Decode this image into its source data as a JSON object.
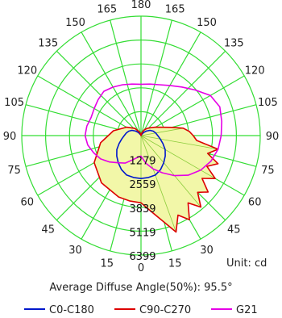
{
  "chart_data": {
    "type": "polar",
    "unit": "Unit: cd",
    "footer": "Average Diffuse Angle(50%): 95.5°",
    "angle_labels": [
      "180",
      "165",
      "150",
      "135",
      "120",
      "105",
      "90",
      "75",
      "60",
      "45",
      "30",
      "15",
      "0",
      "15",
      "30",
      "45",
      "60",
      "75",
      "90",
      "105",
      "120",
      "135",
      "150",
      "165"
    ],
    "ring_labels": [
      "1279",
      "2559",
      "3839",
      "5119",
      "6399"
    ],
    "rmax": 6399,
    "grid": true,
    "legend_position": "bottom",
    "colors": {
      "grid": "#33dd33",
      "fill": "#f2f7a8"
    },
    "series": [
      {
        "name": "C0-C180",
        "color": "#0018cc",
        "angles": [
          0,
          10,
          20,
          30,
          40,
          50,
          60,
          70,
          80,
          90,
          100,
          110,
          120,
          130,
          140,
          150,
          160,
          170,
          180,
          190,
          200,
          210,
          220,
          230,
          240,
          250,
          260,
          270,
          280,
          290,
          300,
          310,
          320,
          330,
          340,
          350
        ],
        "values": [
          2300,
          2280,
          2250,
          2100,
          1900,
          1700,
          1500,
          1250,
          1050,
          900,
          800,
          700,
          560,
          380,
          220,
          60,
          30,
          10,
          0,
          10,
          30,
          60,
          220,
          380,
          560,
          700,
          800,
          900,
          1050,
          1250,
          1500,
          1700,
          1900,
          2100,
          2250,
          2280
        ]
      },
      {
        "name": "C90-C270",
        "color": "#dd0000",
        "angles": [
          0,
          10,
          15,
          20,
          25,
          30,
          35,
          40,
          45,
          50,
          55,
          60,
          65,
          70,
          75,
          80,
          85,
          90,
          95,
          100,
          105,
          110,
          120,
          130,
          140,
          150,
          160,
          170,
          180,
          190,
          200,
          220,
          240,
          260,
          280,
          300,
          320,
          340,
          350
        ],
        "values": [
          3600,
          4300,
          4800,
          5500,
          4700,
          5200,
          4400,
          5000,
          4300,
          4700,
          4000,
          4600,
          3900,
          4400,
          3700,
          4200,
          3000,
          2800,
          2600,
          2300,
          1700,
          1300,
          900,
          650,
          500,
          350,
          180,
          40,
          0,
          40,
          180,
          500,
          900,
          1500,
          2200,
          2900,
          3300,
          3500,
          3550
        ]
      },
      {
        "name": "G21",
        "color": "#e600e6",
        "angles": [
          0,
          10,
          20,
          30,
          40,
          50,
          60,
          70,
          80,
          90,
          100,
          110,
          120,
          130,
          140,
          150,
          160,
          170,
          180,
          190,
          200,
          210,
          220,
          230,
          240,
          250,
          260,
          270,
          280,
          290,
          300,
          310,
          320,
          330,
          340,
          350
        ],
        "values": [
          1100,
          1500,
          1900,
          2300,
          2800,
          3300,
          3700,
          4000,
          4200,
          4300,
          4400,
          4500,
          4300,
          3800,
          3400,
          3100,
          2900,
          2800,
          2750,
          2800,
          2900,
          3000,
          3100,
          3000,
          2900,
          2850,
          2950,
          3000,
          2900,
          2700,
          2500,
          2200,
          1900,
          1700,
          1400,
          1200
        ]
      }
    ]
  }
}
